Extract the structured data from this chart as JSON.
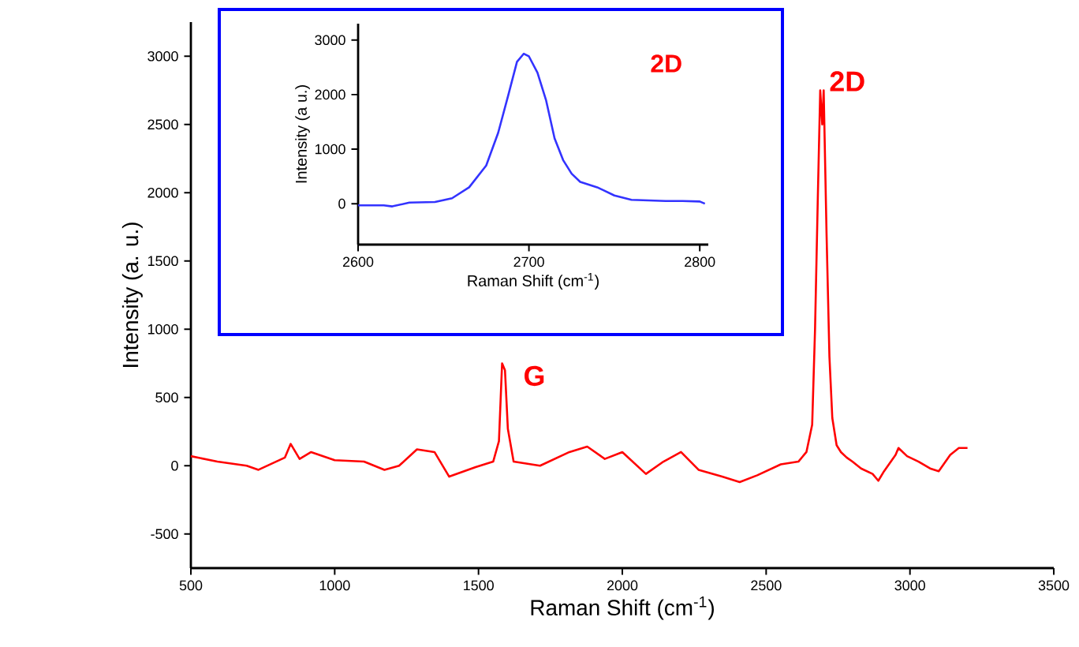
{
  "chart_data": [
    {
      "type": "line",
      "xlabel": "Raman Shift (cm$^{-1}$)",
      "ylabel": "Intensity (a. u.)",
      "xlim": [
        500,
        3500
      ],
      "ylim": [
        -750,
        3250
      ],
      "xticks": [
        500,
        1000,
        1500,
        2000,
        2500,
        3000,
        3500
      ],
      "yticks": [
        -500,
        0,
        500,
        1000,
        1500,
        2000,
        2500,
        3000
      ],
      "grid": false,
      "color": "#ff0000",
      "x": [
        500,
        592,
        694,
        735,
        827,
        847,
        878,
        918,
        1000,
        1102,
        1173,
        1224,
        1286,
        1347,
        1398,
        1490,
        1551,
        1571,
        1582,
        1592,
        1602,
        1622,
        1714,
        1816,
        1878,
        1939,
        2000,
        2082,
        2143,
        2204,
        2265,
        2347,
        2408,
        2469,
        2551,
        2612,
        2640,
        2660,
        2670,
        2680,
        2688,
        2695,
        2700,
        2710,
        2720,
        2730,
        2745,
        2760,
        2780,
        2800,
        2830,
        2870,
        2890,
        2910,
        2950,
        2960,
        2990,
        3030,
        3070,
        3100,
        3140,
        3170,
        3200
      ],
      "values": [
        70,
        30,
        0,
        -30,
        60,
        160,
        50,
        100,
        40,
        30,
        -30,
        0,
        120,
        100,
        -80,
        -10,
        30,
        180,
        750,
        700,
        270,
        30,
        0,
        100,
        140,
        50,
        100,
        -60,
        30,
        100,
        -30,
        -80,
        -120,
        -70,
        10,
        30,
        100,
        300,
        1000,
        2000,
        2750,
        2500,
        2750,
        1700,
        800,
        350,
        150,
        100,
        60,
        30,
        -20,
        -60,
        -110,
        -40,
        80,
        130,
        70,
        30,
        -20,
        -40,
        80,
        130,
        130
      ],
      "annotations": [
        {
          "text": "G",
          "x": 1582,
          "y": 750
        },
        {
          "text": "2D",
          "x": 2700,
          "y": 2750
        }
      ]
    },
    {
      "type": "line",
      "xlabel": "Raman Shift (cm$^{-1}$)",
      "ylabel": "Intensity (a u.)",
      "xlim": [
        2600,
        2805
      ],
      "ylim": [
        -750,
        3300
      ],
      "xticks": [
        2600,
        2700,
        2800
      ],
      "yticks": [
        0,
        1000,
        2000,
        3000
      ],
      "grid": false,
      "color": "#3333ff",
      "x": [
        2600,
        2615,
        2620,
        2630,
        2645,
        2655,
        2665,
        2675,
        2682,
        2688,
        2693,
        2697,
        2700,
        2705,
        2710,
        2715,
        2720,
        2725,
        2730,
        2740,
        2750,
        2760,
        2770,
        2780,
        2790,
        2800,
        2803
      ],
      "values": [
        -30,
        -30,
        -50,
        20,
        30,
        100,
        300,
        700,
        1300,
        2000,
        2600,
        2750,
        2700,
        2400,
        1900,
        1200,
        800,
        550,
        400,
        300,
        150,
        70,
        60,
        50,
        50,
        40,
        0
      ],
      "annotations": [
        "2D"
      ]
    }
  ]
}
